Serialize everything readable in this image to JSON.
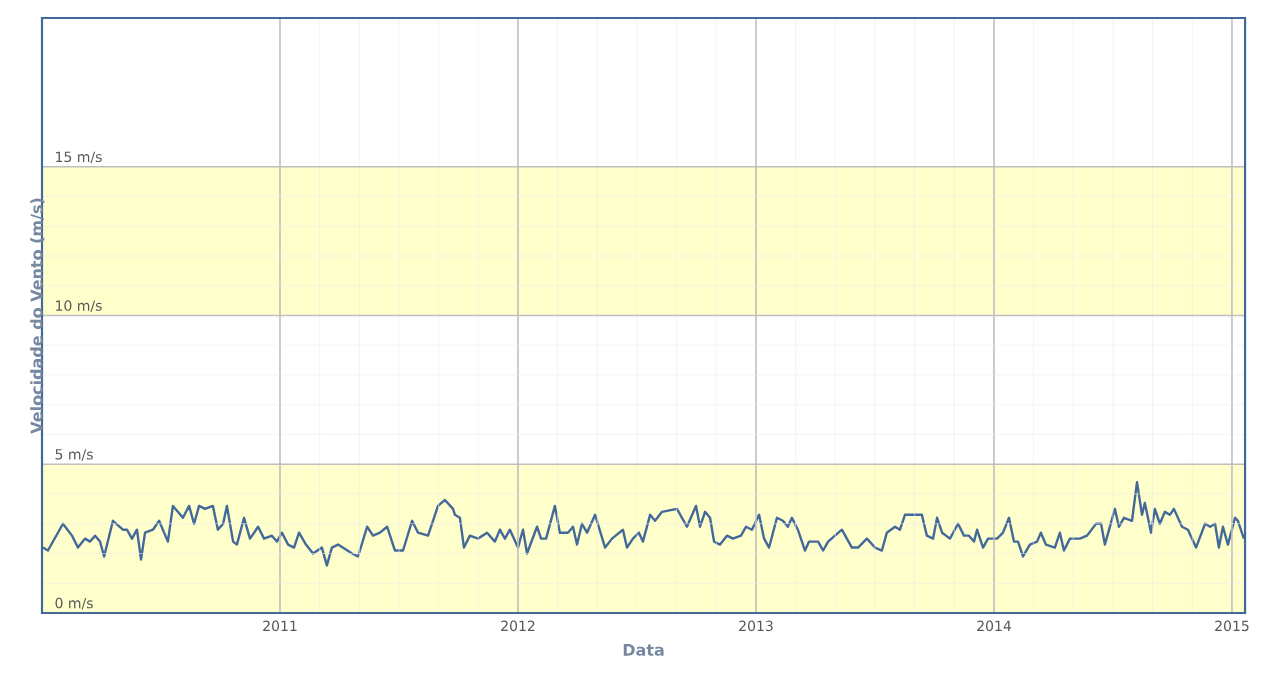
{
  "chart_data": {
    "type": "line",
    "xlabel": "Data",
    "ylabel": "Velocidade do Vento (m/s)",
    "xlim": [
      2010,
      2015.055
    ],
    "xticks": [
      2011,
      2012,
      2013,
      2014,
      2015
    ],
    "ylim": [
      0,
      20
    ],
    "yticks": [
      {
        "value": 0,
        "label": "0 m/s"
      },
      {
        "value": 5,
        "label": "5 m/s"
      },
      {
        "value": 10,
        "label": "10 m/s"
      },
      {
        "value": 15,
        "label": "15 m/s"
      }
    ],
    "grid": true,
    "marker": "none",
    "line_style": "solid",
    "bands": [
      {
        "axis": "y",
        "from": 0,
        "to": 5,
        "color": "#ffffcc"
      },
      {
        "axis": "y",
        "from": 10,
        "to": 15,
        "color": "#ffffcc"
      }
    ],
    "series": [
      {
        "color": "#43699a",
        "x": [
          2010.004,
          2010.025,
          2010.088,
          2010.126,
          2010.151,
          2010.181,
          2010.202,
          2010.223,
          2010.244,
          2010.261,
          2010.298,
          2010.34,
          2010.357,
          2010.378,
          2010.399,
          2010.416,
          2010.433,
          2010.466,
          2010.492,
          2010.529,
          2010.55,
          2010.592,
          2010.618,
          2010.639,
          2010.66,
          2010.685,
          2010.718,
          2010.739,
          2010.761,
          2010.777,
          2010.803,
          2010.819,
          2010.849,
          2010.874,
          2010.908,
          2010.933,
          2010.966,
          2010.987,
          2011.008,
          2011.034,
          2011.059,
          2011.08,
          2011.109,
          2011.139,
          2011.176,
          2011.197,
          2011.218,
          2011.244,
          2011.303,
          2011.328,
          2011.366,
          2011.391,
          2011.42,
          2011.45,
          2011.483,
          2011.517,
          2011.555,
          2011.58,
          2011.622,
          2011.664,
          2011.693,
          2011.727,
          2011.735,
          2011.756,
          2011.773,
          2011.798,
          2011.832,
          2011.87,
          2011.903,
          2011.924,
          2011.945,
          2011.966,
          2012.0,
          2012.021,
          2012.038,
          2012.08,
          2012.097,
          2012.118,
          2012.155,
          2012.176,
          2012.21,
          2012.231,
          2012.248,
          2012.269,
          2012.29,
          2012.324,
          2012.366,
          2012.395,
          2012.441,
          2012.458,
          2012.483,
          2012.508,
          2012.525,
          2012.555,
          2012.576,
          2012.605,
          2012.668,
          2012.71,
          2012.748,
          2012.765,
          2012.786,
          2012.807,
          2012.824,
          2012.849,
          2012.878,
          2012.903,
          2012.937,
          2012.958,
          2012.983,
          2013.013,
          2013.034,
          2013.055,
          2013.088,
          2013.113,
          2013.134,
          2013.151,
          2013.176,
          2013.206,
          2013.223,
          2013.261,
          2013.282,
          2013.303,
          2013.361,
          2013.403,
          2013.429,
          2013.466,
          2013.5,
          2013.529,
          2013.55,
          2013.584,
          2013.605,
          2013.626,
          2013.66,
          2013.697,
          2013.718,
          2013.744,
          2013.761,
          2013.782,
          2013.815,
          2013.849,
          2013.874,
          2013.895,
          2013.916,
          2013.929,
          2013.954,
          2013.975,
          2014.013,
          2014.038,
          2014.063,
          2014.084,
          2014.101,
          2014.122,
          2014.151,
          2014.181,
          2014.197,
          2014.218,
          2014.256,
          2014.277,
          2014.294,
          2014.319,
          2014.361,
          2014.391,
          2014.429,
          2014.45,
          2014.466,
          2014.508,
          2014.525,
          2014.546,
          2014.58,
          2014.601,
          2014.622,
          2014.634,
          2014.66,
          2014.676,
          2014.697,
          2014.718,
          2014.739,
          2014.756,
          2014.79,
          2014.815,
          2014.849,
          2014.887,
          2014.908,
          2014.929,
          2014.945,
          2014.962,
          2014.983,
          2015.013,
          2015.025,
          2015.05
        ],
        "values": [
          2.2,
          2.1,
          3.0,
          2.6,
          2.2,
          2.5,
          2.4,
          2.6,
          2.4,
          1.9,
          3.1,
          2.8,
          2.8,
          2.5,
          2.8,
          1.8,
          2.7,
          2.8,
          3.1,
          2.4,
          3.6,
          3.2,
          3.6,
          3.0,
          3.6,
          3.5,
          3.6,
          2.8,
          3.0,
          3.6,
          2.4,
          2.3,
          3.2,
          2.5,
          2.9,
          2.5,
          2.6,
          2.4,
          2.7,
          2.3,
          2.2,
          2.7,
          2.3,
          2.0,
          2.2,
          1.6,
          2.2,
          2.3,
          2.0,
          1.9,
          2.9,
          2.6,
          2.7,
          2.9,
          2.1,
          2.1,
          3.1,
          2.7,
          2.6,
          3.6,
          3.8,
          3.5,
          3.3,
          3.2,
          2.2,
          2.6,
          2.5,
          2.7,
          2.4,
          2.8,
          2.5,
          2.8,
          2.2,
          2.8,
          2.0,
          2.9,
          2.5,
          2.5,
          3.6,
          2.7,
          2.7,
          2.9,
          2.3,
          3.0,
          2.7,
          3.3,
          2.2,
          2.5,
          2.8,
          2.2,
          2.5,
          2.7,
          2.4,
          3.3,
          3.1,
          3.4,
          3.5,
          2.9,
          3.6,
          2.9,
          3.4,
          3.2,
          2.4,
          2.3,
          2.6,
          2.5,
          2.6,
          2.9,
          2.8,
          3.3,
          2.5,
          2.2,
          3.2,
          3.1,
          2.9,
          3.2,
          2.8,
          2.1,
          2.4,
          2.4,
          2.1,
          2.4,
          2.8,
          2.2,
          2.2,
          2.5,
          2.2,
          2.1,
          2.7,
          2.9,
          2.8,
          3.3,
          3.3,
          3.3,
          2.6,
          2.5,
          3.2,
          2.7,
          2.5,
          3.0,
          2.6,
          2.6,
          2.4,
          2.8,
          2.2,
          2.5,
          2.5,
          2.7,
          3.2,
          2.4,
          2.4,
          1.9,
          2.3,
          2.4,
          2.7,
          2.3,
          2.2,
          2.7,
          2.1,
          2.5,
          2.5,
          2.6,
          3.0,
          3.0,
          2.3,
          3.5,
          2.9,
          3.2,
          3.1,
          4.4,
          3.3,
          3.7,
          2.7,
          3.5,
          3.0,
          3.4,
          3.3,
          3.5,
          2.9,
          2.8,
          2.2,
          3.0,
          2.9,
          3.0,
          2.2,
          2.9,
          2.3,
          3.2,
          3.1,
          2.5
        ]
      }
    ]
  }
}
